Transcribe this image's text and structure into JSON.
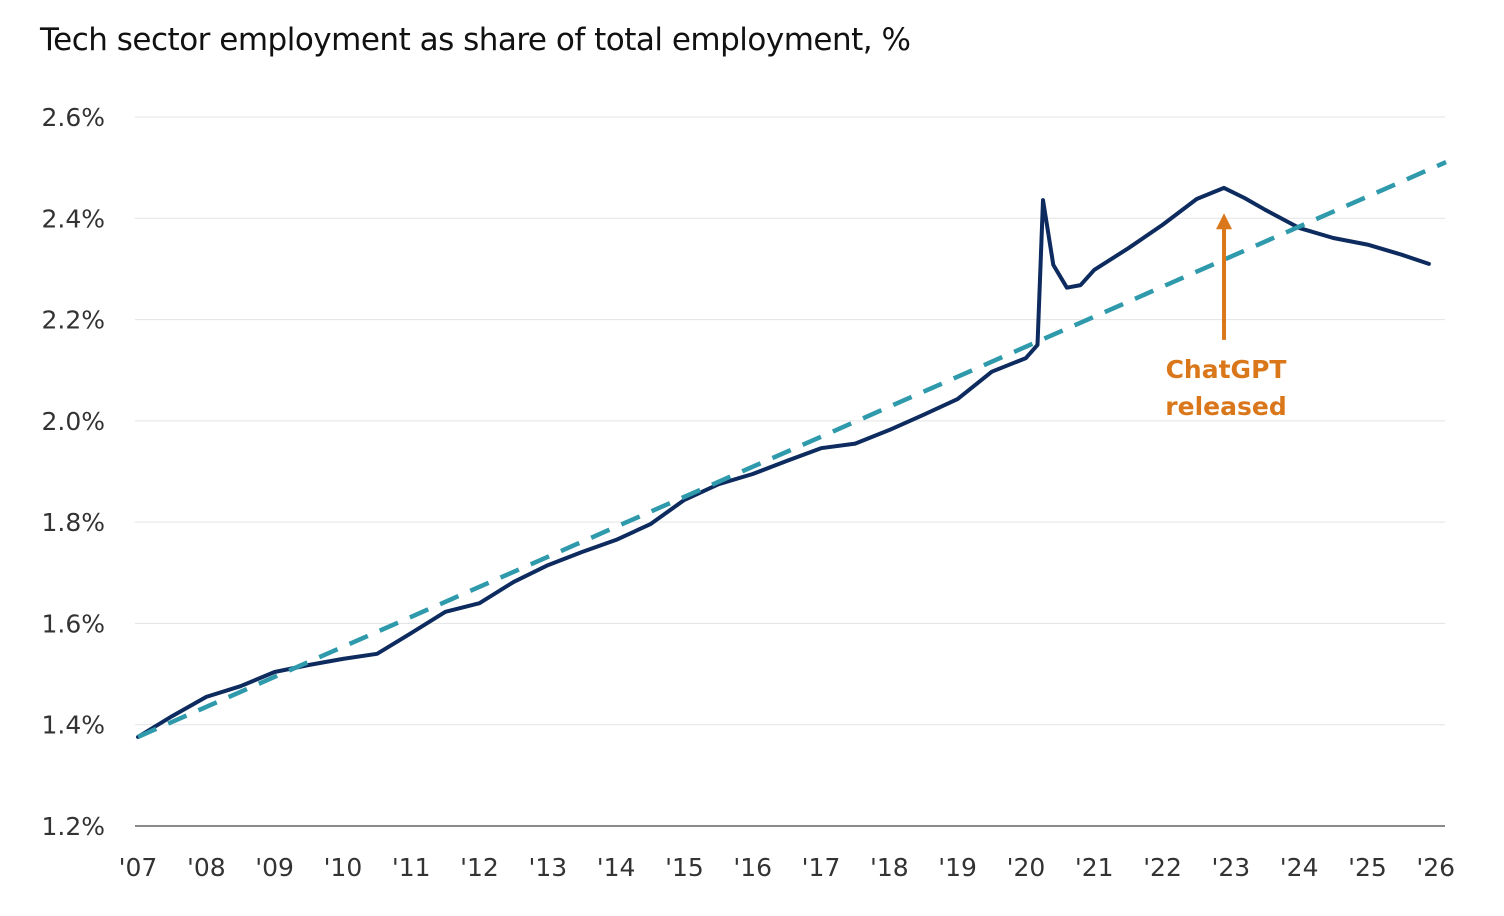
{
  "chart_data": {
    "type": "line",
    "title": "Tech sector employment as share of total employment, %",
    "xlabel": "",
    "ylabel": "",
    "x_ticks": [
      "'07",
      "'08",
      "'09",
      "'10",
      "'11",
      "'12",
      "'13",
      "'14",
      "'15",
      "'16",
      "'17",
      "'18",
      "'19",
      "'20",
      "'21",
      "'22",
      "'23",
      "'24",
      "'25",
      "'26"
    ],
    "y_ticks": [
      "1.2%",
      "1.4%",
      "1.6%",
      "1.8%",
      "2.0%",
      "2.2%",
      "2.4%",
      "2.6%"
    ],
    "xlim": [
      2007,
      2026.15
    ],
    "ylim": [
      1.2,
      2.6
    ],
    "grid": "horizontal",
    "series": [
      {
        "style": "solid",
        "color": "#0d2b5e",
        "x": [
          2007.0,
          2007.5,
          2008.0,
          2008.5,
          2009.0,
          2009.5,
          2010.0,
          2010.5,
          2011.0,
          2011.5,
          2012.0,
          2012.5,
          2013.0,
          2013.5,
          2014.0,
          2014.5,
          2015.0,
          2015.5,
          2016.0,
          2016.5,
          2017.0,
          2017.5,
          2018.0,
          2018.5,
          2019.0,
          2019.5,
          2020.0,
          2020.17,
          2020.25,
          2020.4,
          2020.6,
          2020.8,
          2021.0,
          2021.5,
          2022.0,
          2022.5,
          2022.9,
          2023.2,
          2023.5,
          2024.0,
          2024.5,
          2025.0,
          2025.5,
          2025.9
        ],
        "y": [
          1.376,
          1.417,
          1.455,
          1.476,
          1.504,
          1.518,
          1.53,
          1.54,
          1.581,
          1.623,
          1.64,
          1.682,
          1.715,
          1.741,
          1.765,
          1.796,
          1.844,
          1.875,
          1.895,
          1.921,
          1.946,
          1.955,
          1.982,
          2.012,
          2.043,
          2.097,
          2.124,
          2.15,
          2.436,
          2.308,
          2.263,
          2.268,
          2.298,
          2.341,
          2.387,
          2.438,
          2.46,
          2.44,
          2.417,
          2.381,
          2.361,
          2.348,
          2.328,
          2.31
        ]
      },
      {
        "style": "dashed",
        "color": "#2e9aab",
        "x": [
          2007.0,
          2026.15
        ],
        "y": [
          1.376,
          2.511
        ]
      }
    ],
    "annotations": [
      {
        "text_lines": [
          "ChatGPT",
          "released"
        ],
        "x": 2022.9,
        "arrow_from_y": 2.16,
        "arrow_to_y": 2.41,
        "color": "#d9771a"
      }
    ]
  }
}
